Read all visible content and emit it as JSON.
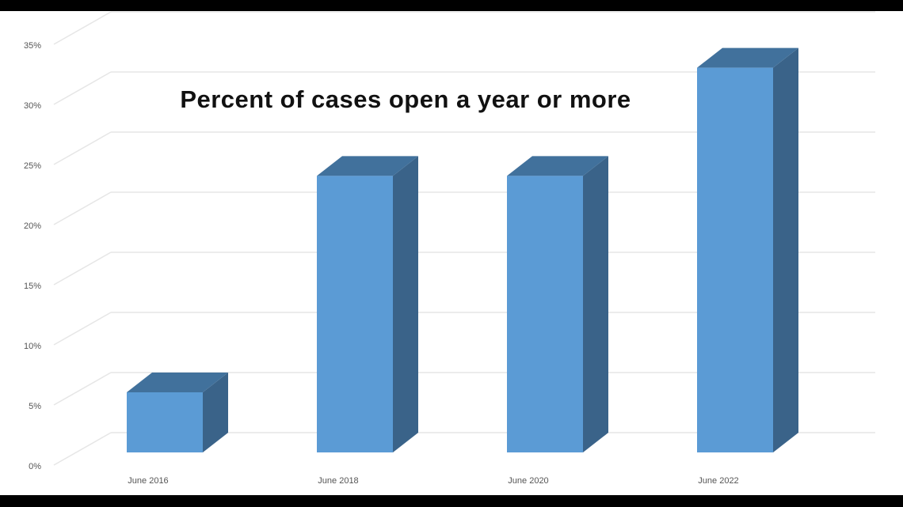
{
  "chart_data": {
    "type": "bar",
    "title": "Percent of cases open a year or more",
    "categories": [
      "June 2016",
      "June 2018",
      "June 2020",
      "June 2022"
    ],
    "values": [
      5,
      23,
      23,
      32
    ],
    "ylim": [
      0,
      35
    ],
    "yticks": [
      0,
      5,
      10,
      15,
      20,
      25,
      30,
      35
    ],
    "ytick_labels": [
      "0%",
      "5%",
      "10%",
      "15%",
      "20%",
      "25%",
      "30%",
      "35%"
    ],
    "xlabel": "",
    "ylabel": "",
    "grid": true,
    "style": "3d-column",
    "colors": {
      "bar_front": "#5b9bd5",
      "bar_top": "#41719c",
      "bar_side": "#3a6389",
      "grid": "#e6e6e6"
    }
  }
}
